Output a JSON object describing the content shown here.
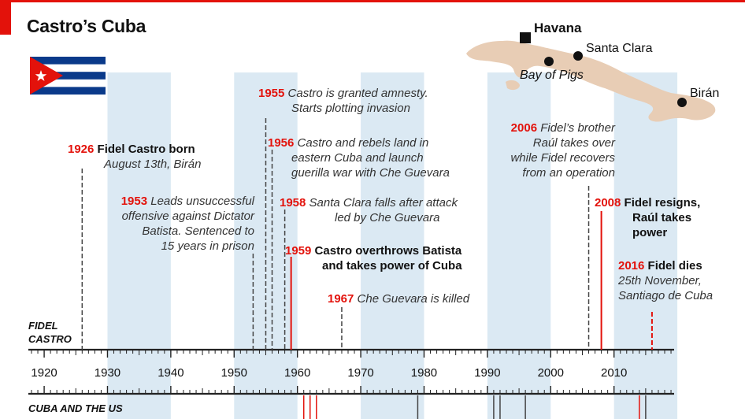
{
  "header": {
    "title": "Castro’s Cuba"
  },
  "colors": {
    "red": "#e3120b",
    "band": "#dbe9f3",
    "map": "#e8cdb5",
    "flag_blue": "#0a3a8a"
  },
  "map": {
    "cities": [
      {
        "name": "Havana",
        "marker": "square"
      },
      {
        "name": "Santa Clara",
        "marker": "dot"
      },
      {
        "name": "Bay of Pigs",
        "marker": "dot"
      },
      {
        "name": "Birán",
        "marker": "dot"
      }
    ]
  },
  "sections": {
    "castro": [
      "FIDEL",
      "CASTRO"
    ],
    "us": "CUBA AND THE US"
  },
  "axis": {
    "start": 1918,
    "end": 2019,
    "labels": [
      "1920",
      "1930",
      "1940",
      "1950",
      "1960",
      "1970",
      "1980",
      "1990",
      "2000",
      "2010"
    ],
    "shaded_decades": [
      1930,
      1950,
      1970,
      1990,
      2010
    ]
  },
  "events": [
    {
      "year": "1926",
      "lines": [
        "Fidel Castro born",
        "August 13th, Birán"
      ]
    },
    {
      "year": "1953",
      "lines": [
        "Leads unsuccessful",
        "offensive against Dictator",
        "Batista. Sentenced to",
        "15 years in prison"
      ]
    },
    {
      "year": "1955",
      "lines": [
        "Castro is granted amnesty.",
        "Starts plotting invasion"
      ]
    },
    {
      "year": "1956",
      "lines": [
        "Castro and rebels land in",
        "eastern Cuba and launch",
        "guerilla war with Che Guevara"
      ]
    },
    {
      "year": "1958",
      "lines": [
        "Santa Clara falls after attack",
        "led by Che Guevara"
      ]
    },
    {
      "year": "1959",
      "lines": [
        "Castro overthrows Batista",
        "and takes power of Cuba"
      ]
    },
    {
      "year": "1967",
      "lines": [
        "Che Guevara is killed"
      ]
    },
    {
      "year": "2006",
      "lines": [
        "Fidel’s brother",
        "Raúl takes over",
        "while Fidel recovers",
        "from an operation"
      ]
    },
    {
      "year": "2008",
      "lines": [
        "Fidel resigns,",
        "Raúl takes",
        "power"
      ]
    },
    {
      "year": "2016",
      "lines": [
        "Fidel dies",
        "25th November,",
        "Santiago de Cuba"
      ]
    }
  ],
  "event_markers": [
    {
      "year": 1926,
      "style": "dashed-dark"
    },
    {
      "year": 1953,
      "style": "dashed-dark"
    },
    {
      "year": 1955,
      "style": "dashed-dark"
    },
    {
      "year": 1956,
      "style": "dashed-dark"
    },
    {
      "year": 1958,
      "style": "dashed-dark"
    },
    {
      "year": 1959,
      "style": "solid-red"
    },
    {
      "year": 1967,
      "style": "dashed-dark"
    },
    {
      "year": 2006,
      "style": "dashed-dark"
    },
    {
      "year": 2008,
      "style": "solid-red"
    },
    {
      "year": 2016,
      "style": "dashed-red"
    }
  ],
  "us_markers": [
    {
      "year": 1961,
      "color": "red"
    },
    {
      "year": 1962,
      "color": "red"
    },
    {
      "year": 1963,
      "color": "red"
    },
    {
      "year": 1979,
      "color": "dark"
    },
    {
      "year": 1991,
      "color": "dark"
    },
    {
      "year": 1992,
      "color": "dark"
    },
    {
      "year": 1996,
      "color": "dark"
    },
    {
      "year": 2014,
      "color": "red"
    },
    {
      "year": 2015,
      "color": "dark"
    }
  ]
}
